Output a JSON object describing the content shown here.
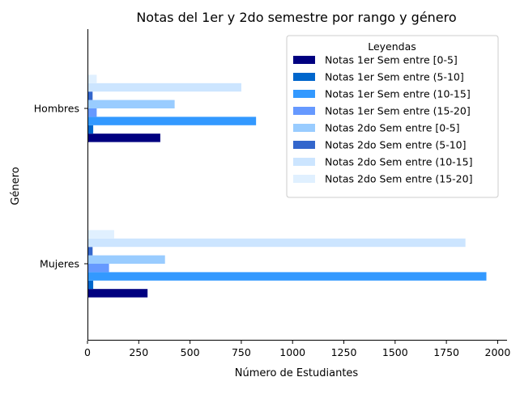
{
  "chart_data": {
    "type": "bar",
    "orientation": "horizontal",
    "title": "Notas del 1er y 2do semestre por rango y género",
    "xlabel": "Número de Estudiantes",
    "ylabel": "Género",
    "categories": [
      "Mujeres",
      "Hombres"
    ],
    "xlim": [
      0,
      2050
    ],
    "xticks": [
      0,
      250,
      500,
      750,
      1000,
      1250,
      1500,
      1750,
      2000
    ],
    "grid": false,
    "legend": {
      "title": "Leyendas",
      "placement": "top-right"
    },
    "series": [
      {
        "name": "Notas 1er Sem entre [0-5]",
        "color": "#000080",
        "values": [
          293,
          355
        ]
      },
      {
        "name": "Notas 1er Sem entre (5-10]",
        "color": "#0066cc",
        "values": [
          28,
          28
        ]
      },
      {
        "name": "Notas 1er Sem entre (10-15]",
        "color": "#3399ff",
        "values": [
          1945,
          822
        ]
      },
      {
        "name": "Notas 1er Sem entre (15-20]",
        "color": "#6699ff",
        "values": [
          105,
          45
        ]
      },
      {
        "name": "Notas 2do Sem entre [0-5]",
        "color": "#99ccff",
        "values": [
          378,
          425
        ]
      },
      {
        "name": "Notas 2do Sem entre (5-10]",
        "color": "#3366cc",
        "values": [
          25,
          25
        ]
      },
      {
        "name": "Notas 2do Sem entre (10-15]",
        "color": "#cce5ff",
        "values": [
          1843,
          750
        ]
      },
      {
        "name": "Notas 2do Sem entre (15-20]",
        "color": "#e0f0ff",
        "values": [
          130,
          45
        ]
      }
    ]
  }
}
